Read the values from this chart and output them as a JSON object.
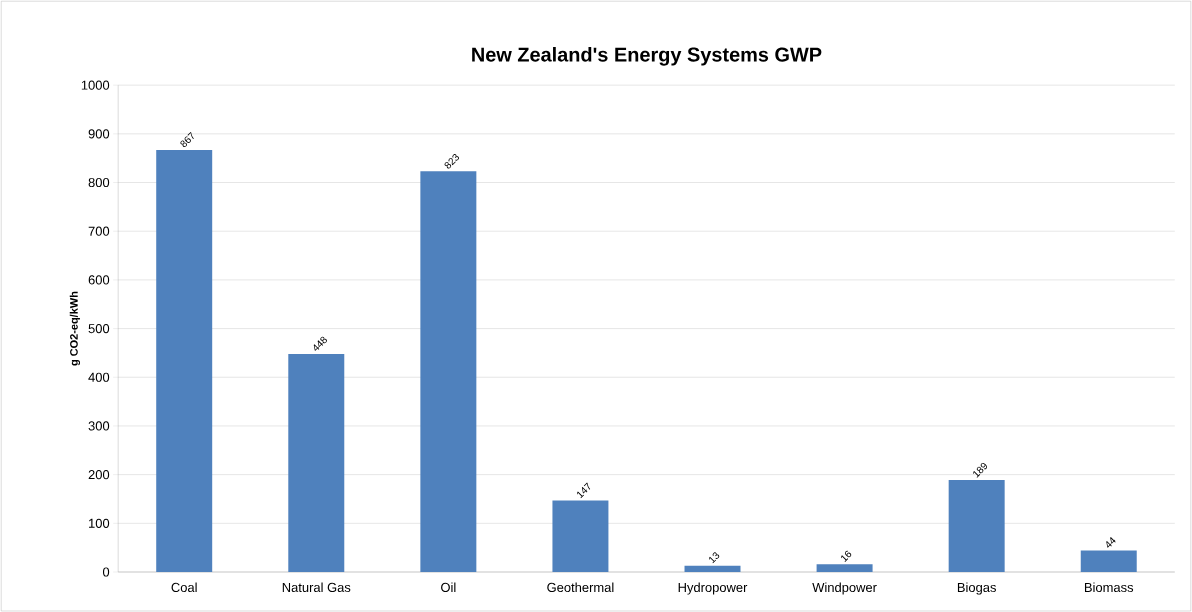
{
  "chart_data": {
    "type": "bar",
    "title": "New Zealand's Energy Systems GWP",
    "ylabel": "g CO2-eq/kWh",
    "categories": [
      "Coal",
      "Natural Gas",
      "Oil",
      "Geothermal",
      "Hydropower",
      "Windpower",
      "Biogas",
      "Biomass"
    ],
    "values": [
      867,
      448,
      823,
      147,
      13,
      16,
      189,
      44
    ],
    "color": "#4f81bd",
    "ylim": [
      0,
      1000
    ],
    "yticks": [
      0,
      100,
      200,
      300,
      400,
      500,
      600,
      700,
      800,
      900,
      1000
    ],
    "grid": "y",
    "data_labels": true
  }
}
